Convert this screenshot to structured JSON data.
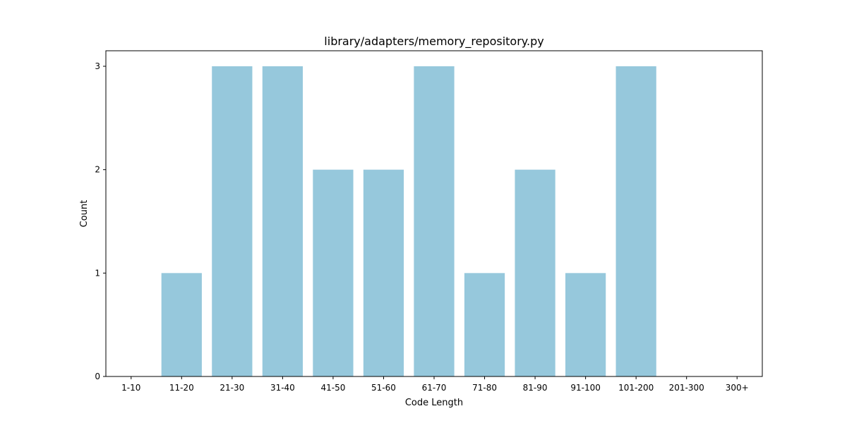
{
  "chart_data": {
    "type": "bar",
    "title": "library/adapters/memory_repository.py",
    "xlabel": "Code Length",
    "ylabel": "Count",
    "categories": [
      "1-10",
      "11-20",
      "21-30",
      "31-40",
      "41-50",
      "51-60",
      "61-70",
      "71-80",
      "81-90",
      "91-100",
      "101-200",
      "201-300",
      "300+"
    ],
    "values": [
      0,
      1,
      3,
      3,
      2,
      2,
      3,
      1,
      2,
      1,
      3,
      0,
      0
    ],
    "ylim": [
      0,
      3.15
    ],
    "yticks": [
      0,
      1,
      2,
      3
    ],
    "bar_color": "#96c8dc",
    "grid": false,
    "legend": "none"
  }
}
